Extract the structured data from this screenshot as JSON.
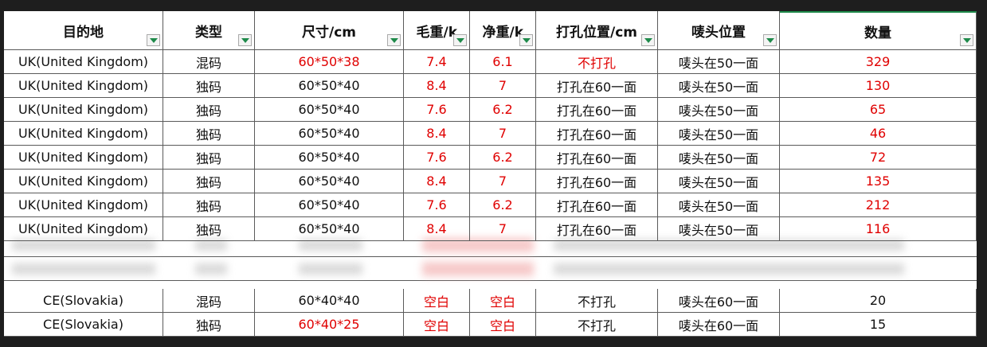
{
  "table": {
    "header": [
      "目的地",
      "类型",
      "尺寸/cm",
      "毛重/kg",
      "净重/kg",
      "打孔位置/cm",
      "唛头位置",
      "数量"
    ],
    "rows": [
      {
        "cells": [
          "UK(United Kingdom)",
          "混码",
          "60*50*38",
          "7.4",
          "6.1",
          "不打孔",
          "唛头在50一面",
          "329"
        ],
        "red_columns": [
          2,
          3,
          4,
          5,
          7
        ]
      },
      {
        "cells": [
          "UK(United Kingdom)",
          "独码",
          "60*50*40",
          "8.4",
          "7",
          "打孔在60一面",
          "唛头在50一面",
          "130"
        ],
        "red_columns": [
          3,
          4,
          7
        ]
      },
      {
        "cells": [
          "UK(United Kingdom)",
          "独码",
          "60*50*40",
          "7.6",
          "6.2",
          "打孔在60一面",
          "唛头在50一面",
          "65"
        ],
        "red_columns": [
          3,
          4,
          7
        ]
      },
      {
        "cells": [
          "UK(United Kingdom)",
          "独码",
          "60*50*40",
          "8.4",
          "7",
          "打孔在60一面",
          "唛头在50一面",
          "46"
        ],
        "red_columns": [
          3,
          4,
          7
        ]
      },
      {
        "cells": [
          "UK(United Kingdom)",
          "独码",
          "60*50*40",
          "7.6",
          "6.2",
          "打孔在60一面",
          "唛头在50一面",
          "72"
        ],
        "red_columns": [
          3,
          4,
          7
        ]
      },
      {
        "cells": [
          "UK(United Kingdom)",
          "独码",
          "60*50*40",
          "8.4",
          "7",
          "打孔在60一面",
          "唛头在50一面",
          "135"
        ],
        "red_columns": [
          3,
          4,
          7
        ]
      },
      {
        "cells": [
          "UK(United Kingdom)",
          "独码",
          "60*50*40",
          "7.6",
          "6.2",
          "打孔在60一面",
          "唛头在50一面",
          "212"
        ],
        "red_columns": [
          3,
          4,
          7
        ]
      },
      {
        "cells": [
          "UK(United Kingdom)",
          "独码",
          "60*50*40",
          "8.4",
          "7",
          "打孔在60一面",
          "唛头在50一面",
          "116"
        ],
        "red_columns": [
          3,
          4,
          7
        ]
      },
      {
        "cells": [
          "CE(Slovakia)",
          "混码",
          "60*40*40",
          "空白",
          "空白",
          "不打孔",
          "唛头在60一面",
          "20"
        ],
        "red_columns": [
          3,
          4
        ]
      },
      {
        "cells": [
          "CE(Slovakia)",
          "独码",
          "60*40*25",
          "空白",
          "空白",
          "不打孔",
          "唛头在60一面",
          "15"
        ],
        "red_columns": [
          2,
          3,
          4
        ]
      }
    ]
  }
}
